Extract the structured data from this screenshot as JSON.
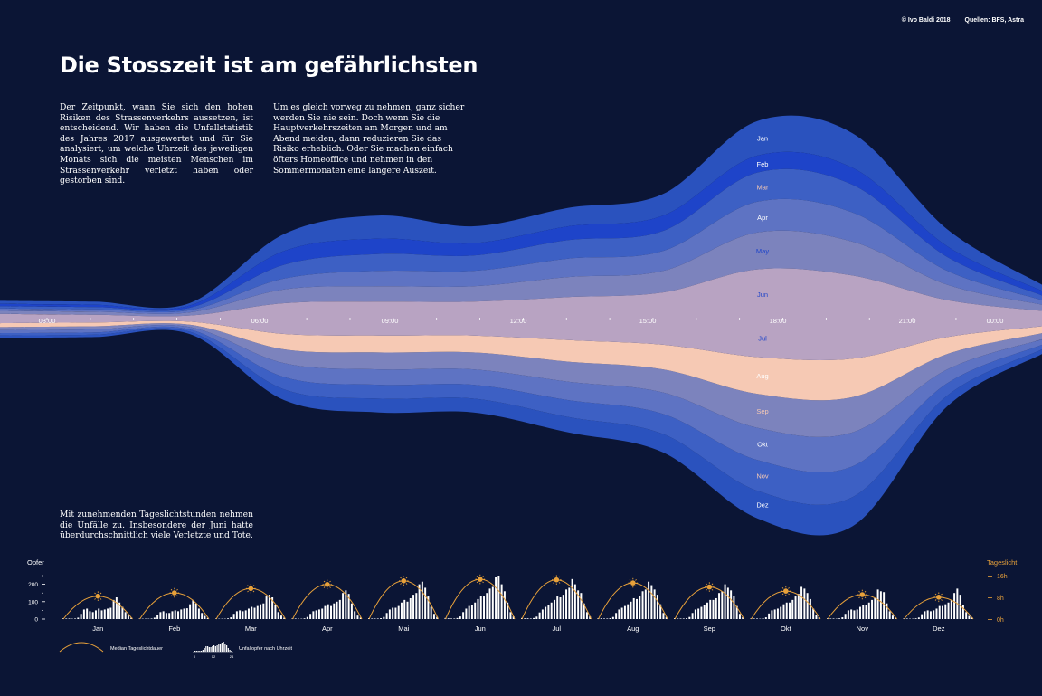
{
  "credits": {
    "author": "© Ivo Baldi 2018",
    "sources": "Quellen: BFS, Astra"
  },
  "title": "Die Stosszeit ist am gefährlichsten",
  "intro": [
    "Der Zeitpunkt, wann Sie sich den hohen Risiken des Strassenverkehrs aussetzen, ist entscheidend. Wir haben die Unfallstatistik des Jahres 2017 ausgewertet und für Sie analysiert, um welche Uhrzeit des jeweiligen Monats sich die meisten Menschen im Strassenverkehr verletzt haben oder gestorben sind.",
    "Um es gleich vorweg zu nehmen, ganz sicher werden Sie nie sein. Doch wenn Sie die Hauptverkehrszeiten am Morgen und am Abend meiden, dann reduzieren Sie das Risiko erheblich. Oder Sie machen einfach öfters Homeoffice und nehmen in den Sommermonaten eine längere Auszeit."
  ],
  "note": "Mit zunehmenden Tageslichtstunden nehmen die Unfälle zu. Insbesondere der Juni hatte überdurchschnittlich viele Verletzte und Tote.",
  "colors": {
    "background": "#0b1535",
    "dark_blue": "#2a52be",
    "mid_blue": "#3d60c4",
    "lavender": "#7c83bd",
    "mauve": "#b8a3c2",
    "peach": "#f6c9b4",
    "daylight": "#e8a13a",
    "bar": "#ffffff"
  },
  "chart_data": [
    {
      "type": "area",
      "subtype": "streamgraph",
      "x_ticks": [
        "03:00",
        "06:00",
        "09:00",
        "12:00",
        "15:00",
        "18:00",
        "21:00",
        "00:00"
      ],
      "series": [
        {
          "name": "Jan",
          "values": [
            4,
            4,
            3,
            22,
            30,
            22,
            24,
            28,
            45,
            45,
            22,
            8
          ]
        },
        {
          "name": "Feb",
          "values": [
            3,
            3,
            3,
            18,
            20,
            16,
            18,
            20,
            22,
            22,
            14,
            6
          ]
        },
        {
          "name": "Mar",
          "values": [
            3,
            3,
            3,
            18,
            22,
            20,
            24,
            26,
            38,
            36,
            18,
            6
          ]
        },
        {
          "name": "Apr",
          "values": [
            3,
            3,
            3,
            14,
            20,
            20,
            24,
            26,
            40,
            38,
            18,
            6
          ]
        },
        {
          "name": "May",
          "values": [
            4,
            4,
            4,
            18,
            20,
            20,
            26,
            28,
            48,
            44,
            20,
            8
          ]
        },
        {
          "name": "Jun",
          "values": [
            6,
            5,
            4,
            20,
            22,
            22,
            28,
            34,
            64,
            56,
            24,
            10
          ]
        },
        {
          "name": "Jul",
          "values": [
            6,
            5,
            4,
            20,
            22,
            22,
            28,
            34,
            50,
            52,
            24,
            10
          ]
        },
        {
          "name": "Aug",
          "values": [
            5,
            5,
            4,
            20,
            22,
            22,
            28,
            32,
            48,
            50,
            22,
            9
          ]
        },
        {
          "name": "Sep",
          "values": [
            4,
            4,
            3,
            18,
            22,
            22,
            26,
            30,
            44,
            46,
            20,
            8
          ]
        },
        {
          "name": "Okt",
          "values": [
            4,
            4,
            3,
            18,
            20,
            20,
            24,
            28,
            42,
            44,
            18,
            7
          ]
        },
        {
          "name": "Nov",
          "values": [
            3,
            3,
            3,
            16,
            18,
            18,
            22,
            26,
            40,
            40,
            16,
            6
          ]
        },
        {
          "name": "Dez",
          "values": [
            3,
            3,
            3,
            14,
            18,
            18,
            20,
            24,
            36,
            38,
            14,
            6
          ]
        }
      ]
    },
    {
      "type": "bar",
      "title": "Opfer",
      "yticks": [
        0,
        100,
        200
      ],
      "y2_title": "Tageslicht",
      "y2_ticks": [
        "0h",
        "8h",
        "16h"
      ],
      "categories": [
        "Jan",
        "Feb",
        "Mar",
        "Apr",
        "Mai",
        "Jun",
        "Jul",
        "Aug",
        "Sep",
        "Okt",
        "Nov",
        "Dez"
      ],
      "series": [
        {
          "name": "Unfallopfer nach Uhrzeit",
          "values": [
            [
              4,
              3,
              3,
              2,
              3,
              8,
              30,
              55,
              60,
              45,
              40,
              50,
              60,
              50,
              55,
              60,
              65,
              110,
              125,
              95,
              70,
              40,
              20,
              8
            ],
            [
              3,
              2,
              2,
              2,
              3,
              8,
              25,
              40,
              45,
              35,
              35,
              45,
              50,
              45,
              55,
              60,
              62,
              85,
              110,
              90,
              60,
              35,
              18,
              6
            ],
            [
              3,
              2,
              2,
              2,
              4,
              10,
              30,
              45,
              50,
              45,
              50,
              60,
              70,
              65,
              75,
              85,
              90,
              130,
              140,
              125,
              80,
              40,
              20,
              8
            ],
            [
              4,
              3,
              2,
              2,
              4,
              12,
              30,
              45,
              50,
              55,
              60,
              75,
              85,
              75,
              90,
              100,
              110,
              150,
              165,
              145,
              90,
              45,
              20,
              8
            ],
            [
              5,
              3,
              3,
              3,
              5,
              12,
              35,
              55,
              65,
              65,
              75,
              95,
              110,
              100,
              120,
              140,
              150,
              200,
              215,
              180,
              130,
              70,
              30,
              12
            ],
            [
              6,
              4,
              3,
              3,
              6,
              15,
              40,
              60,
              75,
              80,
              95,
              115,
              135,
              130,
              150,
              175,
              185,
              240,
              250,
              200,
              160,
              95,
              40,
              15
            ],
            [
              6,
              4,
              4,
              3,
              6,
              14,
              38,
              55,
              70,
              80,
              95,
              110,
              130,
              125,
              140,
              170,
              180,
              230,
              200,
              165,
              150,
              90,
              40,
              15
            ],
            [
              5,
              4,
              3,
              3,
              5,
              12,
              35,
              55,
              65,
              75,
              85,
              100,
              120,
              115,
              130,
              160,
              170,
              215,
              195,
              170,
              140,
              85,
              35,
              12
            ],
            [
              5,
              3,
              3,
              3,
              5,
              12,
              35,
              55,
              60,
              70,
              80,
              95,
              110,
              110,
              120,
              150,
              160,
              200,
              180,
              165,
              135,
              75,
              30,
              10
            ],
            [
              4,
              3,
              3,
              2,
              4,
              10,
              32,
              50,
              55,
              60,
              70,
              85,
              95,
              95,
              110,
              130,
              145,
              185,
              175,
              150,
              115,
              60,
              25,
              10
            ],
            [
              4,
              3,
              3,
              2,
              4,
              10,
              30,
              50,
              55,
              50,
              55,
              70,
              80,
              80,
              95,
              110,
              120,
              170,
              160,
              155,
              90,
              45,
              20,
              8
            ],
            [
              4,
              3,
              2,
              2,
              4,
              9,
              28,
              45,
              50,
              45,
              50,
              60,
              75,
              75,
              85,
              95,
              110,
              150,
              175,
              140,
              80,
              40,
              18,
              8
            ]
          ]
        },
        {
          "name": "Median Tageslichtdauer",
          "values": [
            9,
            10.3,
            12,
            13.6,
            15,
            15.6,
            15.4,
            14.2,
            12.6,
            11,
            9.6,
            8.6
          ]
        }
      ],
      "legend": [
        "Median Tageslichtdauer",
        "Unfallopfer nach Uhrzeit"
      ],
      "legend_mini_ticks": [
        "0",
        "12",
        "24"
      ]
    }
  ]
}
